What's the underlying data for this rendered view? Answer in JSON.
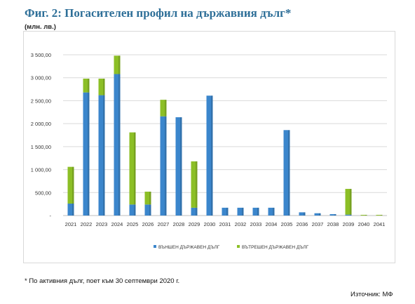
{
  "title": "Фиг. 2: Погасителен профил на държавния дълг*",
  "unit": "(млн. лв.)",
  "footnote": "* По активния дълг, поет към 30 септември 2020 г.",
  "source": "Източник: МФ",
  "colors": {
    "external": "#3b86cc",
    "internal": "#8cbf26"
  },
  "chart_data": {
    "type": "bar",
    "stacked": true,
    "categories": [
      "2021",
      "2022",
      "2023",
      "2024",
      "2025",
      "2026",
      "2027",
      "2028",
      "2029",
      "2030",
      "2031",
      "2032",
      "2033",
      "2034",
      "2035",
      "2036",
      "2037",
      "2038",
      "2039",
      "2040",
      "2041"
    ],
    "series": [
      {
        "name": "ВЪНШЕН ДЪРЖАВЕН ДЪЛГ",
        "values": [
          260,
          2680,
          2620,
          3080,
          240,
          240,
          2160,
          2140,
          170,
          2610,
          170,
          170,
          170,
          170,
          1860,
          70,
          50,
          30,
          20,
          0,
          0
        ]
      },
      {
        "name": "ВЪТРЕШЕН ДЪРЖАВЕН ДЪЛГ",
        "values": [
          800,
          300,
          360,
          400,
          1570,
          280,
          360,
          0,
          1010,
          0,
          0,
          0,
          0,
          0,
          0,
          0,
          0,
          0,
          560,
          15,
          15
        ]
      }
    ],
    "yticks": [
      "-",
      "500,00",
      "1 000,00",
      "1 500,00",
      "2 000,00",
      "2 500,00",
      "3 000,00",
      "3 500,00"
    ],
    "ylim": [
      0,
      3500
    ],
    "grid": true,
    "legend": "bottom"
  }
}
